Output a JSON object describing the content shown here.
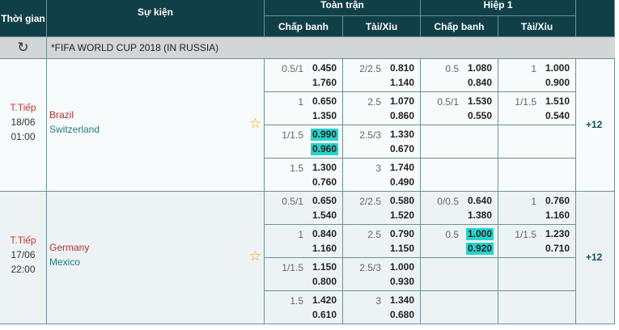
{
  "header": {
    "time": "Thời gian",
    "event": "Sự kiện",
    "full_time": "Toàn trận",
    "first_half": "Hiệp 1",
    "handicap": "Chấp banh",
    "over_under": "Tài/Xỉu"
  },
  "league": {
    "name": "*FIFA WORLD CUP 2018 (IN RUSSIA)",
    "refresh_icon": "refresh-icon"
  },
  "colors": {
    "header_bg": "#113f47",
    "highlight": "#26d4cc",
    "home": "#b03030",
    "away": "#227a80"
  },
  "matches": [
    {
      "status": "T.Tiếp",
      "date": "18/06",
      "time": "01:00",
      "home": "Brazil",
      "away": "Switzerland",
      "more": "+12",
      "rows": [
        [
          {
            "line": "0.5/1",
            "o1": "0.450",
            "o2": "1.760"
          },
          {
            "line": "2/2.5",
            "o1": "0.810",
            "o2": "1.140"
          },
          {
            "line": "0.5",
            "o1": "1.080",
            "o2": "0.840"
          },
          {
            "line": "1",
            "o1": "1.000",
            "o2": "0.900"
          }
        ],
        [
          {
            "line": "1",
            "o1": "0.650",
            "o2": "1.350"
          },
          {
            "line": "2.5",
            "o1": "1.070",
            "o2": "0.860"
          },
          {
            "line": "0.5/1",
            "o1": "1.530",
            "o2": "0.550"
          },
          {
            "line": "1/1.5",
            "o1": "1.510",
            "o2": "0.540"
          }
        ],
        [
          {
            "line": "1/1.5",
            "o1": "0.990",
            "o2": "0.960",
            "hl": true
          },
          {
            "line": "2.5/3",
            "o1": "1.330",
            "o2": "0.670"
          },
          null,
          null
        ],
        [
          {
            "line": "1.5",
            "o1": "1.300",
            "o2": "0.760"
          },
          {
            "line": "3",
            "o1": "1.740",
            "o2": "0.490"
          },
          null,
          null
        ]
      ]
    },
    {
      "status": "T.Tiếp",
      "date": "17/06",
      "time": "22:00",
      "home": "Germany",
      "away": "Mexico",
      "more": "+12",
      "rows": [
        [
          {
            "line": "0.5/1",
            "o1": "0.650",
            "o2": "1.540"
          },
          {
            "line": "2/2.5",
            "o1": "0.580",
            "o2": "1.520"
          },
          {
            "line": "0/0.5",
            "o1": "0.640",
            "o2": "1.380"
          },
          {
            "line": "1",
            "o1": "0.760",
            "o2": "1.160"
          }
        ],
        [
          {
            "line": "1",
            "o1": "0.840",
            "o2": "1.160"
          },
          {
            "line": "2.5",
            "o1": "0.790",
            "o2": "1.150"
          },
          {
            "line": "0.5",
            "o1": "1.000",
            "o2": "0.920",
            "hl": true
          },
          {
            "line": "1/1.5",
            "o1": "1.230",
            "o2": "0.710"
          }
        ],
        [
          {
            "line": "1/1.5",
            "o1": "1.150",
            "o2": "0.800"
          },
          {
            "line": "2.5/3",
            "o1": "1.000",
            "o2": "0.930"
          },
          null,
          null
        ],
        [
          {
            "line": "1.5",
            "o1": "1.420",
            "o2": "0.610"
          },
          {
            "line": "3",
            "o1": "1.340",
            "o2": "0.680"
          },
          null,
          null
        ]
      ]
    }
  ]
}
